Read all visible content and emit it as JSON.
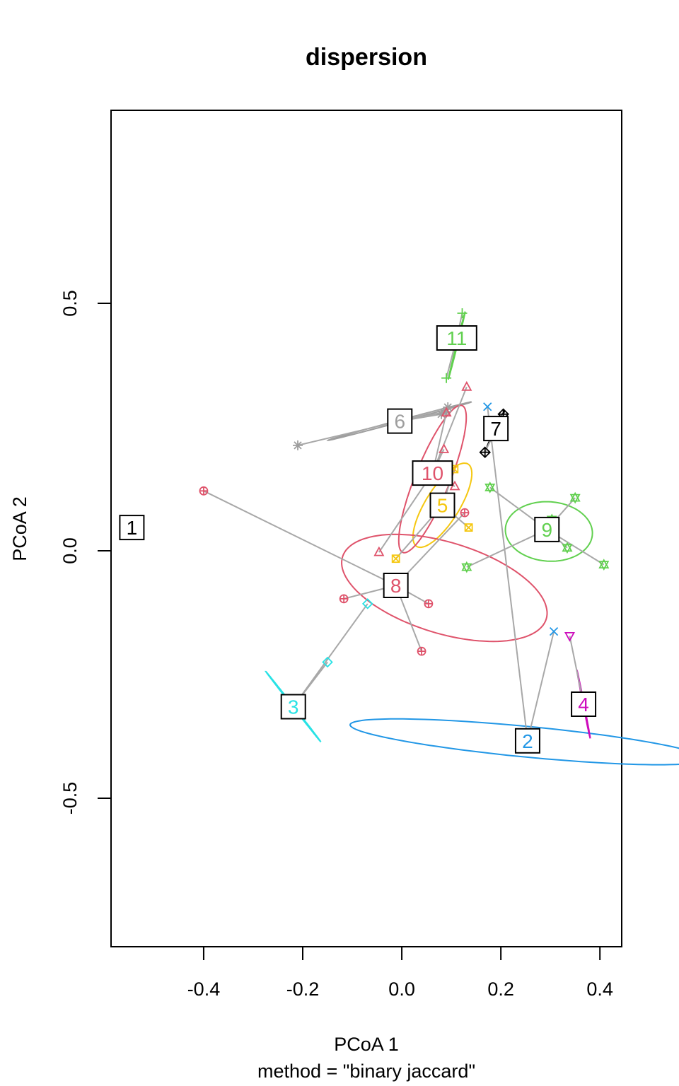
{
  "chart_data": {
    "type": "scatter",
    "title": "dispersion",
    "xlabel": "PCoA 1",
    "ylabel": "PCoA 2",
    "sub": "method = \"binary jaccard\"",
    "xlim": [
      -0.587,
      0.444
    ],
    "ylim": [
      -0.8,
      0.89
    ],
    "x_ticks": [
      -0.4,
      -0.2,
      0.0,
      0.2,
      0.4
    ],
    "x_tick_labels": [
      "-0.4",
      "-0.2",
      "0.0",
      "0.2",
      "0.4"
    ],
    "y_ticks": [
      -0.5,
      0.0,
      0.5
    ],
    "y_tick_labels": [
      "-0.5",
      "0.0",
      "0.5"
    ],
    "groups": [
      {
        "label": "1",
        "color": "#000000",
        "centroid": [
          -0.545,
          0.047
        ],
        "points": [],
        "ellipse": null
      },
      {
        "label": "2",
        "color": "#2297E6",
        "marker": "x",
        "centroid": [
          0.254,
          -0.384
        ],
        "points": [
          [
            0.173,
            0.291
          ],
          [
            0.307,
            -0.163
          ]
        ],
        "ellipse": {
          "cx": 0.254,
          "cy": -0.386,
          "rx": 0.031,
          "ry": 0.36,
          "angle": 84.5
        }
      },
      {
        "label": "3",
        "color": "#28E2E5",
        "marker": "diamond",
        "centroid": [
          -0.219,
          -0.315
        ],
        "points": [
          [
            -0.069,
            -0.107
          ],
          [
            -0.15,
            -0.225
          ]
        ],
        "ellipse": {
          "cx": -0.219,
          "cy": -0.315,
          "rx": 0.09,
          "ry": 0.001,
          "angle": -52
        }
      },
      {
        "label": "4",
        "color": "#CD0BBC",
        "marker": "tri-down",
        "centroid": [
          0.367,
          -0.31
        ],
        "points": [
          [
            0.339,
            -0.172
          ]
        ],
        "ellipse": {
          "cx": 0.367,
          "cy": -0.31,
          "rx": 0.07,
          "ry": 0.001,
          "angle": -79
        }
      },
      {
        "label": "5",
        "color": "#F5C710",
        "marker": "square-x",
        "centroid": [
          0.082,
          0.092
        ],
        "points": [
          [
            -0.012,
            -0.016
          ],
          [
            0.135,
            0.047
          ],
          [
            0.106,
            0.165
          ]
        ],
        "ellipse": {
          "cx": 0.082,
          "cy": 0.092,
          "rx": 0.098,
          "ry": 0.034,
          "angle": 58
        }
      },
      {
        "label": "6",
        "color": "#9E9E9E",
        "marker": "asterisk",
        "centroid": [
          -0.004,
          0.262
        ],
        "points": [
          [
            -0.21,
            0.213
          ],
          [
            0.093,
            0.29
          ],
          [
            0.08,
            0.276
          ],
          [
            0.09,
            0.281
          ]
        ],
        "ellipse": {
          "cx": -0.004,
          "cy": 0.262,
          "rx": 0.15,
          "ry": 0.002,
          "angle": 15
        }
      },
      {
        "label": "7",
        "color": "#000000",
        "marker": "diamond-plus",
        "centroid": [
          0.19,
          0.247
        ],
        "points": [
          [
            0.168,
            0.199
          ],
          [
            0.205,
            0.276
          ]
        ],
        "ellipse": {
          "cx": 0.19,
          "cy": 0.247,
          "rx": 0.04,
          "ry": 0.001,
          "angle": 64
        }
      },
      {
        "label": "8",
        "color": "#DF536B",
        "marker": "circle-plus",
        "centroid": [
          -0.012,
          -0.07
        ],
        "points": [
          [
            -0.4,
            0.121
          ],
          [
            -0.117,
            -0.097
          ],
          [
            0.054,
            -0.107
          ],
          [
            0.04,
            -0.203
          ],
          [
            0.127,
            0.077
          ]
        ],
        "ellipse": {
          "cx": 0.086,
          "cy": -0.075,
          "rx": 0.215,
          "ry": 0.092,
          "angle": -17
        }
      },
      {
        "label": "9",
        "color": "#61D04F",
        "marker": "star-david",
        "centroid": [
          0.293,
          0.043
        ],
        "points": [
          [
            0.178,
            0.128
          ],
          [
            0.131,
            -0.033
          ],
          [
            0.35,
            0.107
          ],
          [
            0.334,
            0.006
          ],
          [
            0.408,
            -0.028
          ],
          [
            0.303,
            0.063
          ]
        ],
        "ellipse": {
          "cx": 0.297,
          "cy": 0.039,
          "rx": 0.088,
          "ry": 0.06,
          "angle": -4
        }
      },
      {
        "label": "10",
        "color": "#DF536B",
        "marker": "triangle",
        "centroid": [
          0.062,
          0.157
        ],
        "points": [
          [
            0.131,
            0.331
          ],
          [
            0.085,
            0.205
          ],
          [
            0.107,
            0.13
          ],
          [
            -0.046,
            -0.003
          ],
          [
            0.09,
            0.279
          ]
        ],
        "ellipse": {
          "cx": 0.062,
          "cy": 0.145,
          "rx": 0.16,
          "ry": 0.035,
          "angle": 68
        }
      },
      {
        "label": "11",
        "color": "#61D04F",
        "marker": "plus",
        "centroid": [
          0.111,
          0.43
        ],
        "points": [
          [
            0.122,
            0.48
          ],
          [
            0.09,
            0.349
          ]
        ],
        "ellipse": {
          "cx": 0.111,
          "cy": 0.415,
          "rx": 0.07,
          "ry": 0.001,
          "angle": 76
        }
      }
    ]
  }
}
